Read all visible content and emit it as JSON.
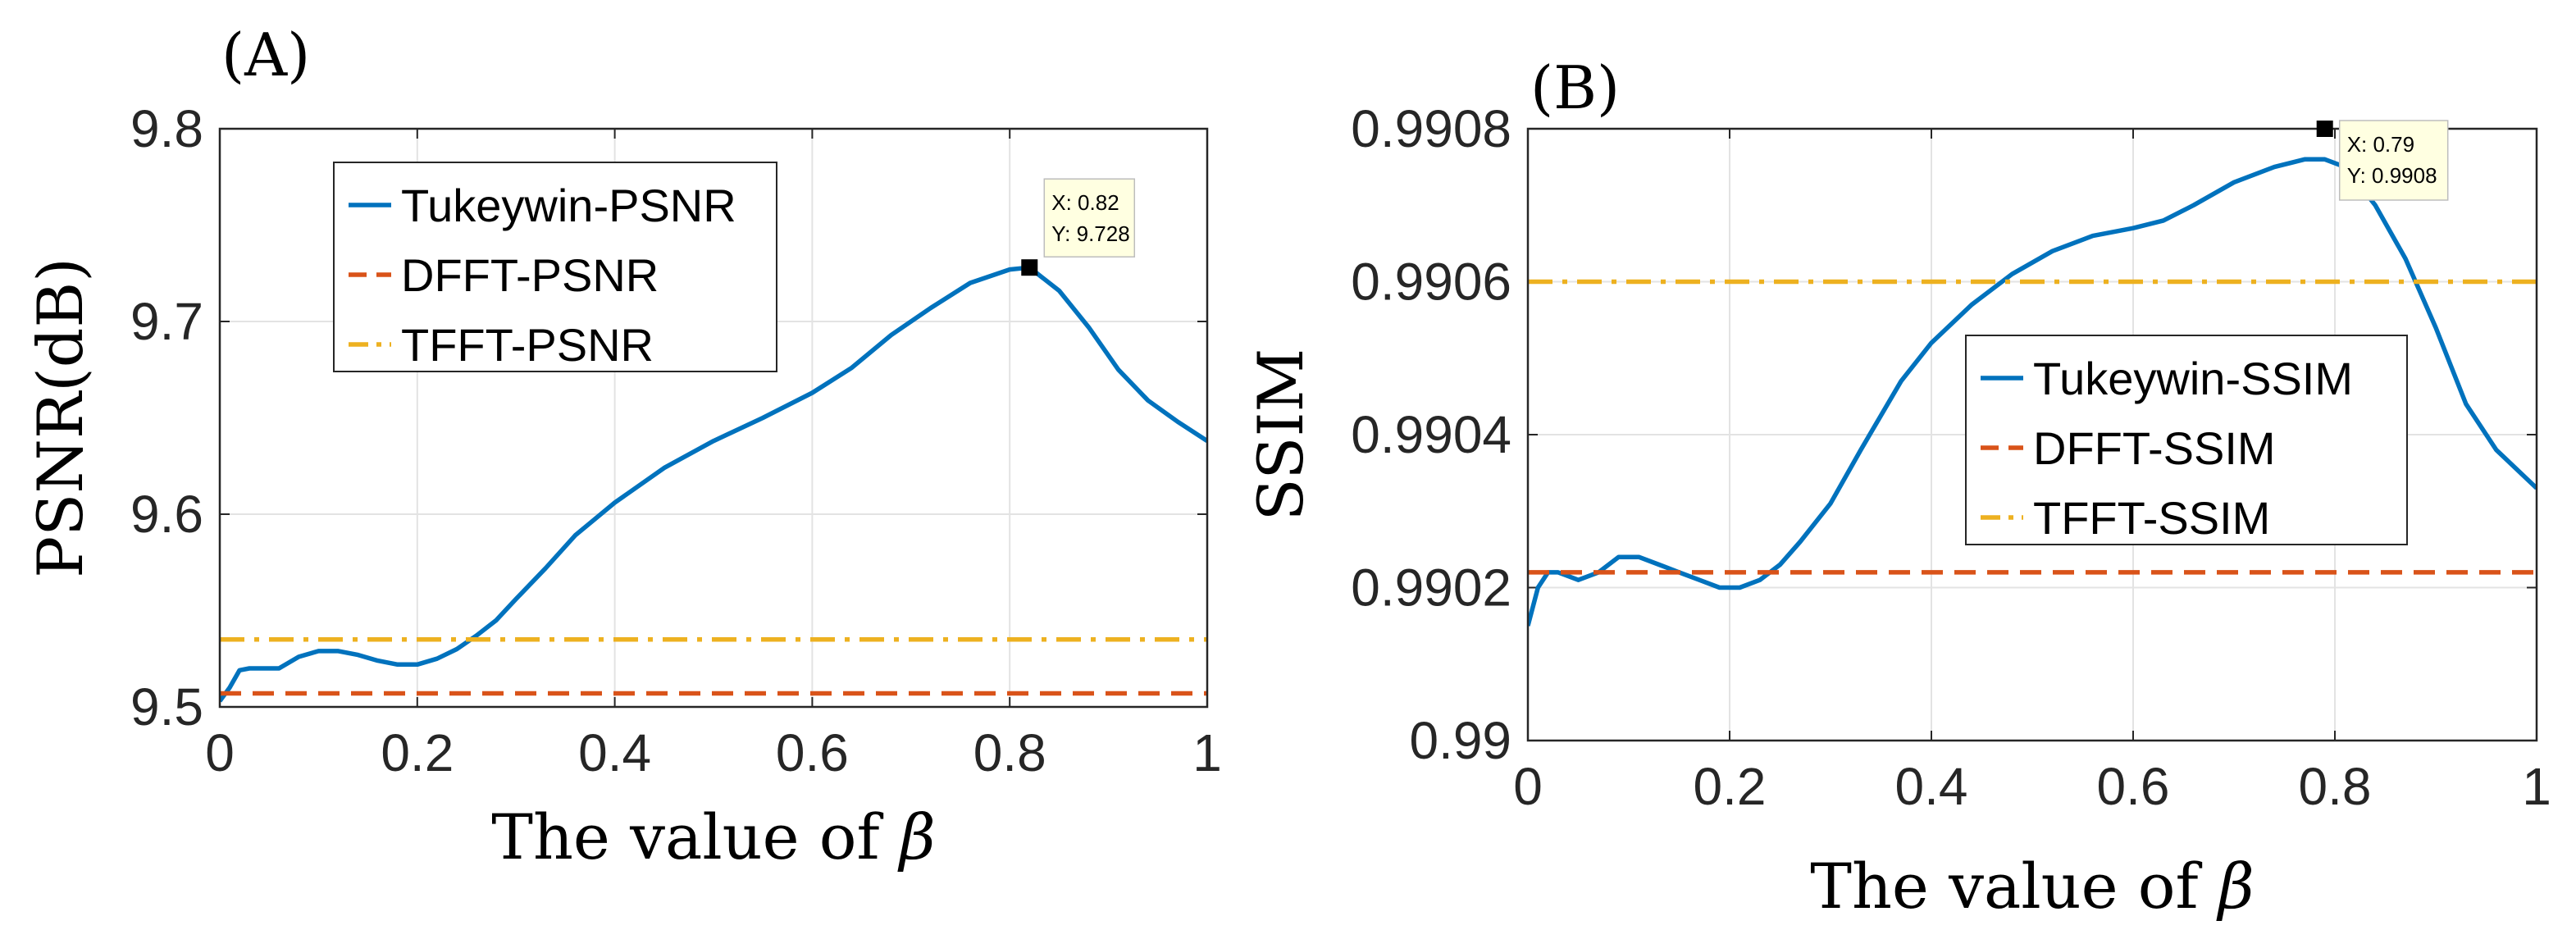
{
  "colors": {
    "series_tukeywin": "#0072BD",
    "series_dfft": "#D95319",
    "series_tfft": "#EDB120",
    "grid": "#e3e3e3",
    "axis": "#262626",
    "tooltip_bg": "#ffffe1"
  },
  "chart_data": [
    {
      "panel_label": "(A)",
      "type": "line",
      "xlabel_text": "The value of ",
      "xlabel_symbol": "β",
      "ylabel": "PSNR(dB)",
      "xlim": [
        0,
        1
      ],
      "ylim": [
        9.5,
        9.8
      ],
      "xticks": [
        0,
        0.2,
        0.4,
        0.6,
        0.8,
        1
      ],
      "xtick_labels": [
        "0",
        "0.2",
        "0.4",
        "0.6",
        "0.8",
        "1"
      ],
      "yticks": [
        9.5,
        9.6,
        9.7,
        9.8
      ],
      "ytick_labels": [
        "9.5",
        "9.6",
        "9.7",
        "9.8"
      ],
      "grid": true,
      "legend_position": "top-left",
      "series": [
        {
          "name": "Tukeywin-PSNR",
          "style": "solid",
          "x": [
            0,
            0.01,
            0.02,
            0.03,
            0.045,
            0.06,
            0.08,
            0.1,
            0.12,
            0.14,
            0.16,
            0.18,
            0.2,
            0.22,
            0.24,
            0.26,
            0.28,
            0.3,
            0.33,
            0.36,
            0.4,
            0.45,
            0.5,
            0.55,
            0.6,
            0.64,
            0.68,
            0.72,
            0.76,
            0.8,
            0.82,
            0.85,
            0.88,
            0.91,
            0.94,
            0.97,
            1.0
          ],
          "y": [
            9.503,
            9.51,
            9.519,
            9.52,
            9.52,
            9.52,
            9.526,
            9.529,
            9.529,
            9.527,
            9.524,
            9.522,
            9.522,
            9.525,
            9.53,
            9.537,
            9.545,
            9.556,
            9.572,
            9.589,
            9.606,
            9.624,
            9.638,
            9.65,
            9.663,
            9.676,
            9.693,
            9.707,
            9.72,
            9.727,
            9.728,
            9.716,
            9.697,
            9.675,
            9.659,
            9.648,
            9.638
          ]
        },
        {
          "name": "DFFT-PSNR",
          "style": "dashed",
          "constant": 9.507
        },
        {
          "name": "TFFT-PSNR",
          "style": "dashdot",
          "constant": 9.535
        }
      ],
      "datatip": {
        "x": 0.82,
        "y": 9.728,
        "x_text": "X: 0.82",
        "y_text": "Y: 9.728"
      }
    },
    {
      "panel_label": "(B)",
      "type": "line",
      "xlabel_text": "The value of ",
      "xlabel_symbol": "β",
      "ylabel": "SSIM",
      "xlim": [
        0,
        1
      ],
      "ylim": [
        0.99,
        0.9908
      ],
      "xticks": [
        0,
        0.2,
        0.4,
        0.6,
        0.8,
        1
      ],
      "xtick_labels": [
        "0",
        "0.2",
        "0.4",
        "0.6",
        "0.8",
        "1"
      ],
      "yticks": [
        0.99,
        0.9902,
        0.9904,
        0.9906,
        0.9908
      ],
      "ytick_labels": [
        "0.99",
        "0.9902",
        "0.9904",
        "0.9906",
        "0.9908"
      ],
      "grid": true,
      "legend_position": "center-right",
      "series": [
        {
          "name": "Tukeywin-SSIM",
          "style": "solid",
          "x": [
            0,
            0.01,
            0.02,
            0.03,
            0.05,
            0.07,
            0.09,
            0.11,
            0.13,
            0.15,
            0.17,
            0.19,
            0.21,
            0.23,
            0.25,
            0.27,
            0.3,
            0.33,
            0.37,
            0.4,
            0.44,
            0.48,
            0.52,
            0.56,
            0.6,
            0.63,
            0.66,
            0.7,
            0.74,
            0.77,
            0.79,
            0.81,
            0.84,
            0.87,
            0.9,
            0.93,
            0.96,
            1.0
          ],
          "y": [
            0.99015,
            0.9902,
            0.99022,
            0.99022,
            0.99021,
            0.99022,
            0.99024,
            0.99024,
            0.99023,
            0.99022,
            0.99021,
            0.9902,
            0.9902,
            0.99021,
            0.99023,
            0.99026,
            0.99031,
            0.99038,
            0.99047,
            0.99052,
            0.99057,
            0.99061,
            0.99064,
            0.99066,
            0.99067,
            0.99068,
            0.9907,
            0.99073,
            0.99075,
            0.99076,
            0.99076,
            0.99075,
            0.9907,
            0.99063,
            0.99054,
            0.99044,
            0.99038,
            0.99033
          ]
        },
        {
          "name": "DFFT-SSIM",
          "style": "dashed",
          "constant": 0.99022
        },
        {
          "name": "TFFT-SSIM",
          "style": "dashdot",
          "constant": 0.9906
        }
      ],
      "datatip": {
        "x": 0.79,
        "y": 0.9908,
        "x_text": "X: 0.79",
        "y_text": "Y: 0.9908"
      }
    }
  ]
}
